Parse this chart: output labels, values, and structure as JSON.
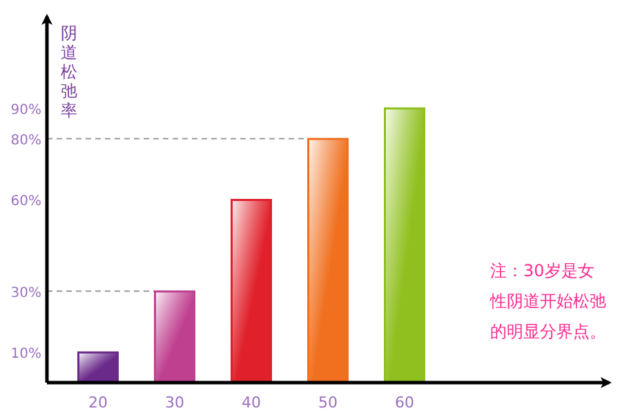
{
  "chart_data": {
    "type": "bar",
    "ylabel": "阴道松弛率",
    "categories": [
      "20",
      "30",
      "40",
      "50",
      "60"
    ],
    "values": [
      10,
      30,
      60,
      80,
      90
    ],
    "colors": [
      "#6a2a8a",
      "#c04090",
      "#e0202a",
      "#f07020",
      "#90c020"
    ],
    "ylim": [
      0,
      120
    ],
    "yticks": [
      {
        "value": 10,
        "label": "10%"
      },
      {
        "value": 30,
        "label": "30%"
      },
      {
        "value": 60,
        "label": "60%"
      },
      {
        "value": 80,
        "label": "80%"
      },
      {
        "value": 90,
        "label": "90%"
      }
    ],
    "ref_lines": [
      {
        "axis": "y",
        "value": 30,
        "color": "#999999",
        "line_style": "dashed"
      },
      {
        "axis": "y",
        "value": 80,
        "color": "#999999",
        "line_style": "dashed"
      }
    ],
    "grid": false,
    "annotations": [
      "注：30岁是女性阴道开始松弛的明显分界点。"
    ]
  }
}
